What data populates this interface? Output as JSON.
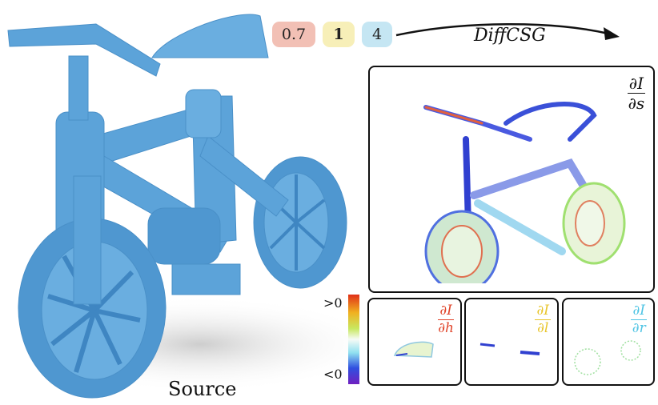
{
  "source_label": "Source",
  "params": [
    {
      "label": "0.7",
      "bg": "#f2c0b5"
    },
    {
      "label": "1",
      "bg": "#f7efb8"
    },
    {
      "label": "4",
      "bg": "#c5e6f3"
    }
  ],
  "method_label": "DiffCSG",
  "panels": {
    "main": {
      "numerator": "∂I",
      "denominator": "∂s",
      "color": "#111111"
    },
    "h": {
      "numerator": "∂I",
      "denominator": "∂h",
      "color": "#e0442a"
    },
    "l": {
      "numerator": "∂I",
      "denominator": "∂l",
      "color": "#e8c52c"
    },
    "r": {
      "numerator": "∂I",
      "denominator": "∂r",
      "color": "#4fc4e4"
    }
  },
  "colorbar": {
    "max_label": ">0",
    "min_label": "<0"
  },
  "colors": {
    "model": "#5ca3d9",
    "model_dark": "#3f86c2",
    "model_light": "#86bde6"
  }
}
